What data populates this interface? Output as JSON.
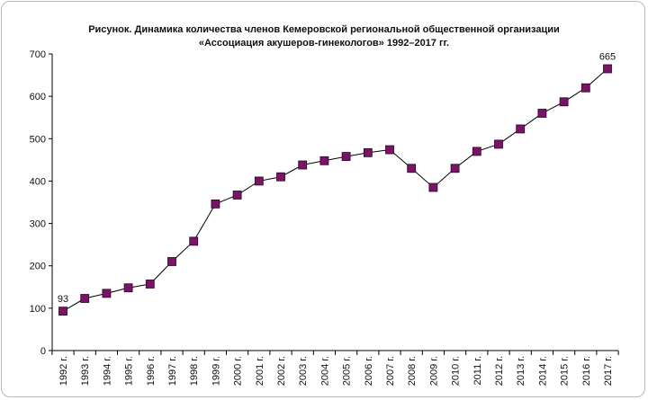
{
  "chart_data": {
    "type": "line",
    "title_line1": "Рисунок. Динамика количества членов Кемеровской региональной общественной организации",
    "title_line2": "«Ассоциация акушеров-гинекологов» 1992–2017 гг.",
    "categories": [
      "1992 г.",
      "1993 г.",
      "1994 г.",
      "1995 г.",
      "1996 г.",
      "1997 г.",
      "1998 г.",
      "1999 г.",
      "2000 г.",
      "2001 г.",
      "2002 г.",
      "2003 г.",
      "2004 г.",
      "2005 г.",
      "2006 г.",
      "2007 г.",
      "2008 г.",
      "2009 г.",
      "2010 г.",
      "2011 г.",
      "2012 г.",
      "2013 г.",
      "2014 г.",
      "2015 г.",
      "2016 г.",
      "2017 г."
    ],
    "series": [
      {
        "values": [
          93,
          123,
          135,
          148,
          157,
          210,
          258,
          346,
          367,
          400,
          410,
          438,
          448,
          458,
          467,
          474,
          430,
          385,
          430,
          470,
          487,
          523,
          560,
          587,
          620,
          665
        ]
      }
    ],
    "data_labels": [
      {
        "index": 0,
        "text": "93"
      },
      {
        "index": 25,
        "text": "665"
      }
    ],
    "ylim": [
      0,
      700
    ],
    "yticks": [
      0,
      100,
      200,
      300,
      400,
      500,
      600,
      700
    ],
    "grid": false,
    "marker_color": "#7a1466",
    "line_color": "#000000",
    "xlabel": "",
    "ylabel": ""
  }
}
